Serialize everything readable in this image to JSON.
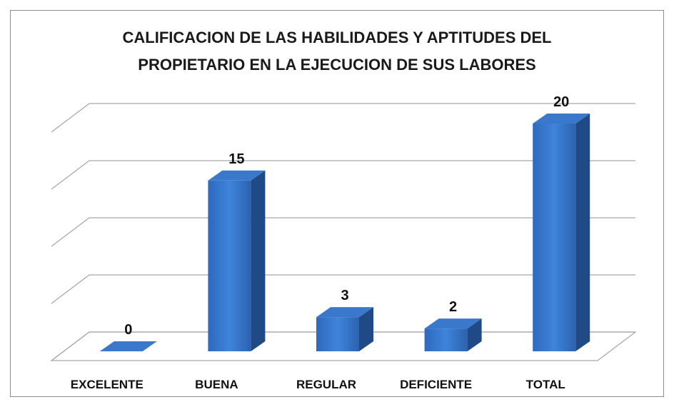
{
  "chart_data": {
    "type": "bar3d",
    "title": "CALIFICACION DE LAS HABILIDADES Y APTITUDES DEL PROPIETARIO EN LA EJECUCION DE SUS LABORES",
    "categories": [
      "EXCELENTE",
      "BUENA",
      "REGULAR",
      "DEFICIENTE",
      "TOTAL"
    ],
    "values": [
      0,
      15,
      3,
      2,
      20
    ],
    "color": "#3a7bd5",
    "ylim": [
      0,
      20
    ],
    "yticks": [
      0,
      5,
      10,
      15,
      20
    ],
    "grid": true
  }
}
